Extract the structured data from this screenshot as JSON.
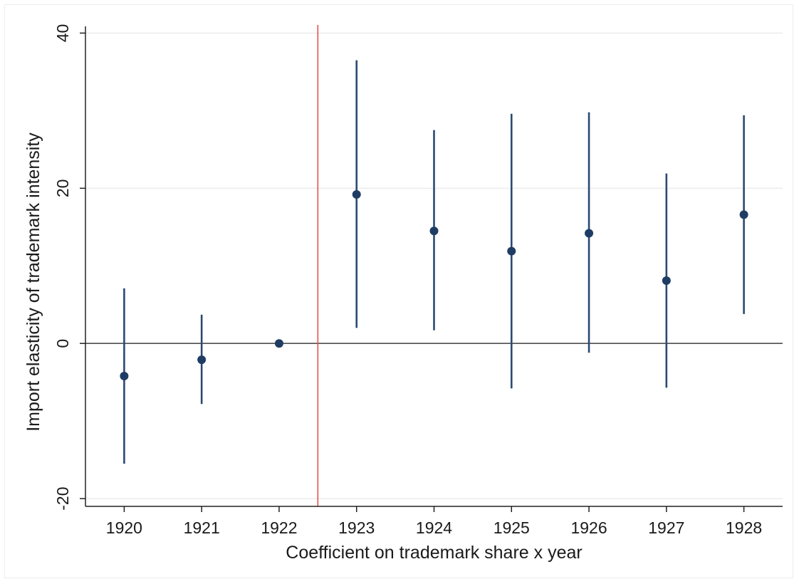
{
  "chart_data": {
    "type": "scatter",
    "title": "",
    "xlabel": "Coefficient on trademark share x year",
    "ylabel": "Import elasticity of trademark intensity",
    "x": [
      1920,
      1921,
      1922,
      1923,
      1924,
      1925,
      1926,
      1927,
      1928
    ],
    "x_tick_labels": [
      "1920",
      "1921",
      "1922",
      "1923",
      "1924",
      "1925",
      "1926",
      "1927",
      "1928"
    ],
    "xlim": [
      1919.5,
      1928.5
    ],
    "ylim": [
      -21,
      40.5
    ],
    "y_ticks": [
      -20,
      0,
      20,
      40
    ],
    "y_tick_labels": [
      "-20",
      "0",
      "20",
      "40"
    ],
    "grid": true,
    "series": [
      {
        "estimate": [
          -4.2,
          -2.1,
          0,
          19.2,
          14.5,
          11.9,
          14.2,
          8.1,
          16.6
        ],
        "ci_lower": [
          -15.5,
          -7.8,
          0,
          2.0,
          1.7,
          -5.8,
          -1.2,
          -5.7,
          3.8
        ],
        "ci_upper": [
          7.1,
          3.7,
          0,
          36.5,
          27.5,
          29.6,
          29.8,
          21.9,
          29.4
        ]
      }
    ],
    "reference_lines": [
      {
        "axis": "y",
        "value": 0
      },
      {
        "axis": "x",
        "value": 1922.5
      }
    ],
    "colors": {
      "points": "#1f3d64",
      "error_bars": "#2b4a72",
      "zero_line": "#4d4d4d",
      "event_line": "#e0564e",
      "grid": "#ececec",
      "axis": "#222222"
    }
  }
}
